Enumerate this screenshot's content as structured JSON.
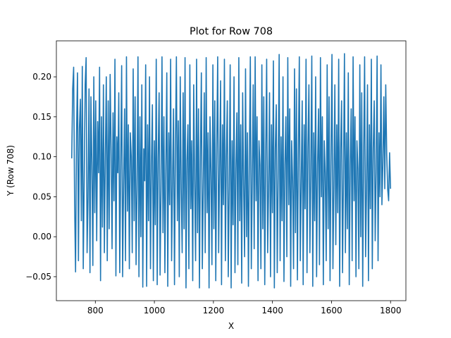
{
  "chart_data": {
    "type": "line",
    "title": "Plot for Row 708",
    "xlabel": "X",
    "ylabel": "Y (Row 708)",
    "xlim": [
      668,
      1852
    ],
    "ylim": [
      -0.08,
      0.245
    ],
    "x_ticks": [
      800,
      1000,
      1200,
      1400,
      1600,
      1800
    ],
    "y_ticks": [
      -0.05,
      0.0,
      0.05,
      0.1,
      0.15,
      0.2
    ],
    "y_tick_labels": [
      "−0.05",
      "0.00",
      "0.05",
      "0.10",
      "0.15",
      "0.20"
    ],
    "grid": false,
    "line_color": "#1f77b4",
    "series": [
      {
        "x_start": 720,
        "x_end": 1800,
        "y_range": [
          -0.064,
          0.229
        ],
        "values": [
          0.098,
          0.185,
          0.212,
          0.041,
          -0.044,
          0.13,
          0.205,
          -0.03,
          0.136,
          0.172,
          0.02,
          0.213,
          -0.04,
          0.07,
          0.19,
          0.224,
          -0.02,
          0.05,
          0.185,
          -0.045,
          0.175,
          0.09,
          -0.036,
          0.2,
          0.03,
          0.17,
          -0.005,
          0.144,
          0.08,
          0.212,
          -0.055,
          0.15,
          0.012,
          0.19,
          -0.02,
          0.1,
          0.2,
          -0.03,
          0.17,
          0.01,
          0.203,
          0.11,
          -0.015,
          0.155,
          0.045,
          0.222,
          -0.049,
          0.125,
          0.08,
          0.18,
          -0.045,
          0.09,
          0.214,
          -0.05,
          0.065,
          0.16,
          -0.03,
          0.225,
          0.032,
          0.14,
          -0.04,
          0.13,
          0.1,
          -0.02,
          0.21,
          0.02,
          0.175,
          -0.035,
          0.06,
          0.225,
          -0.05,
          0.15,
          0.0,
          0.19,
          -0.063,
          0.11,
          0.07,
          0.215,
          -0.062,
          0.14,
          0.02,
          0.2,
          -0.04,
          0.09,
          0.165,
          -0.055,
          0.12,
          0.015,
          0.222,
          -0.06,
          0.1,
          0.18,
          -0.048,
          0.06,
          0.225,
          0.005,
          0.15,
          -0.045,
          0.085,
          0.205,
          -0.062,
          0.13,
          0.04,
          0.222,
          -0.03,
          0.07,
          0.16,
          -0.06,
          0.11,
          0.225,
          0.02,
          0.145,
          -0.05,
          0.2,
          0.06,
          -0.02,
          0.18,
          0.01,
          0.224,
          -0.064,
          0.095,
          0.14,
          -0.04,
          0.215,
          0.035,
          0.12,
          -0.055,
          0.19,
          0.07,
          -0.03,
          0.222,
          0.005,
          0.16,
          -0.064,
          0.1,
          0.205,
          -0.04,
          0.06,
          0.18,
          -0.02,
          0.224,
          0.03,
          0.13,
          -0.064,
          0.15,
          0.08,
          -0.035,
          0.215,
          0.01,
          0.17,
          -0.055,
          0.11,
          0.225,
          -0.02,
          0.08,
          0.195,
          -0.06,
          0.14,
          0.04,
          0.222,
          -0.03,
          0.1,
          0.17,
          -0.05,
          0.06,
          0.215,
          -0.064,
          0.12,
          0.015,
          0.2,
          -0.045,
          0.085,
          0.155,
          -0.035,
          0.224,
          0.02,
          0.14,
          -0.058,
          0.18,
          0.065,
          -0.025,
          0.21,
          0.0,
          0.13,
          -0.062,
          0.1,
          0.225,
          -0.04,
          0.07,
          0.19,
          -0.015,
          0.225,
          0.045,
          0.15,
          -0.055,
          0.12,
          0.09,
          -0.04,
          0.215,
          0.01,
          0.175,
          -0.06,
          0.1,
          0.222,
          -0.02,
          0.06,
          0.18,
          -0.05,
          0.14,
          0.03,
          0.22,
          -0.064,
          0.11,
          0.165,
          -0.045,
          0.075,
          0.228,
          -0.03,
          0.125,
          0.02,
          0.2,
          -0.056,
          0.09,
          0.15,
          -0.025,
          0.224,
          0.04,
          0.16,
          -0.062,
          0.12,
          0.07,
          -0.04,
          0.21,
          0.005,
          0.185,
          -0.054,
          0.1,
          0.225,
          -0.03,
          0.065,
          0.17,
          -0.06,
          0.14,
          0.035,
          0.222,
          -0.045,
          0.11,
          0.19,
          -0.02,
          0.08,
          0.226,
          -0.062,
          0.13,
          0.02,
          0.2,
          -0.05,
          0.09,
          0.16,
          -0.035,
          0.224,
          0.05,
          0.15,
          -0.06,
          0.12,
          0.08,
          -0.03,
          0.215,
          0.01,
          0.175,
          -0.055,
          0.1,
          0.228,
          -0.04,
          0.06,
          0.19,
          -0.01,
          0.14,
          0.03,
          0.222,
          -0.062,
          0.11,
          0.17,
          -0.045,
          0.075,
          0.229,
          -0.02,
          0.13,
          0.01,
          0.205,
          -0.06,
          0.09,
          0.16,
          -0.03,
          0.225,
          0.045,
          0.15,
          -0.05,
          0.12,
          0.085,
          -0.04,
          0.215,
          0.0,
          0.18,
          -0.062,
          0.1,
          0.225,
          -0.025,
          0.06,
          0.19,
          -0.055,
          0.14,
          0.035,
          0.222,
          -0.04,
          0.11,
          0.17,
          -0.005,
          0.08,
          0.226,
          -0.03,
          0.13,
          0.05,
          0.215,
          0.04,
          0.09,
          0.175,
          0.06,
          0.19,
          0.103,
          0.06,
          0.045,
          0.105,
          0.06
        ]
      }
    ]
  }
}
